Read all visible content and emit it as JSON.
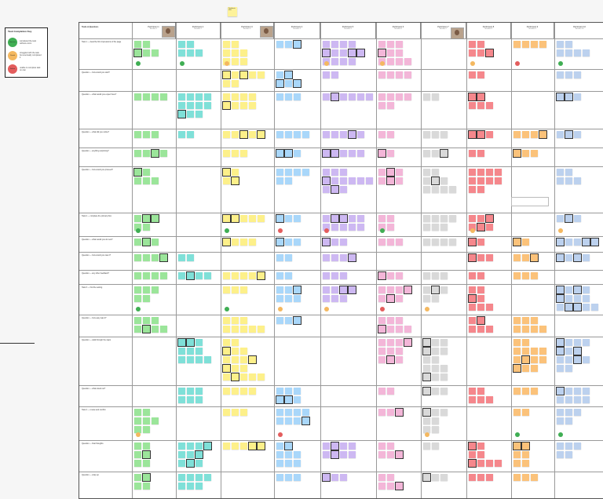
{
  "key": {
    "title": "Task Completion Key",
    "items": [
      {
        "label": "Success",
        "desc": "completed the task without errors",
        "color": "#3fae53"
      },
      {
        "label": "Partial",
        "desc": "struggled with the task but eventually completed it",
        "color": "#f4b860"
      },
      {
        "label": "Failure",
        "desc": "unable to complete task on own",
        "color": "#e35d5d"
      }
    ]
  },
  "top_sticky": "Synthesis note",
  "board": {
    "task_header": "Tasks & Questions",
    "participants": [
      {
        "id": "P1",
        "name": "Participant 1",
        "sub": "Session 1",
        "color": "#9be59a"
      },
      {
        "id": "P2",
        "name": "Participant 2",
        "sub": "Session 2",
        "color": "#7fe0d8"
      },
      {
        "id": "P3",
        "name": "Participant 3",
        "sub": "Session 3",
        "color": "#fdf08a"
      },
      {
        "id": "P4",
        "name": "Participant 4",
        "sub": "Session 4",
        "color": "#a9d7fa"
      },
      {
        "id": "P5",
        "name": "Participant 5",
        "sub": "Session 5",
        "color": "#cdb8f2"
      },
      {
        "id": "P6",
        "name": "Participant 6",
        "sub": "Session 6",
        "color": "#f3b6d8"
      },
      {
        "id": "P7",
        "name": "Participant 7",
        "sub": "Session 7",
        "color": "#d9d9d9"
      },
      {
        "id": "P8",
        "name": "Participant 8",
        "sub": "Session 8",
        "color": "#f5878c"
      },
      {
        "id": "P9",
        "name": "Participant 9",
        "sub": "Session 9",
        "color": "#fbc27a"
      },
      {
        "id": "P10",
        "name": "Participant 10",
        "sub": "Session 10",
        "color": "#bcd1ee"
      }
    ],
    "rows": [
      "Task 1 — describe first impressions of the page",
      "Question — how would you start?",
      "Question — what would you expect here?",
      "Question — what did you notice?",
      "Question — anything surprising?",
      "Question — how would you proceed?",
      "Task 2 — complete the primary flow",
      "Question — what would you do next?",
      "Question — how would you rate it?",
      "Question — any other feedback?",
      "Task 3 — find the setting",
      "Question — how easy was it?",
      "Question — walk through the steps",
      "Question — what stood out?",
      "Task 4 — review and confirm",
      "Question — final thoughts",
      "Question — wrap up"
    ]
  }
}
